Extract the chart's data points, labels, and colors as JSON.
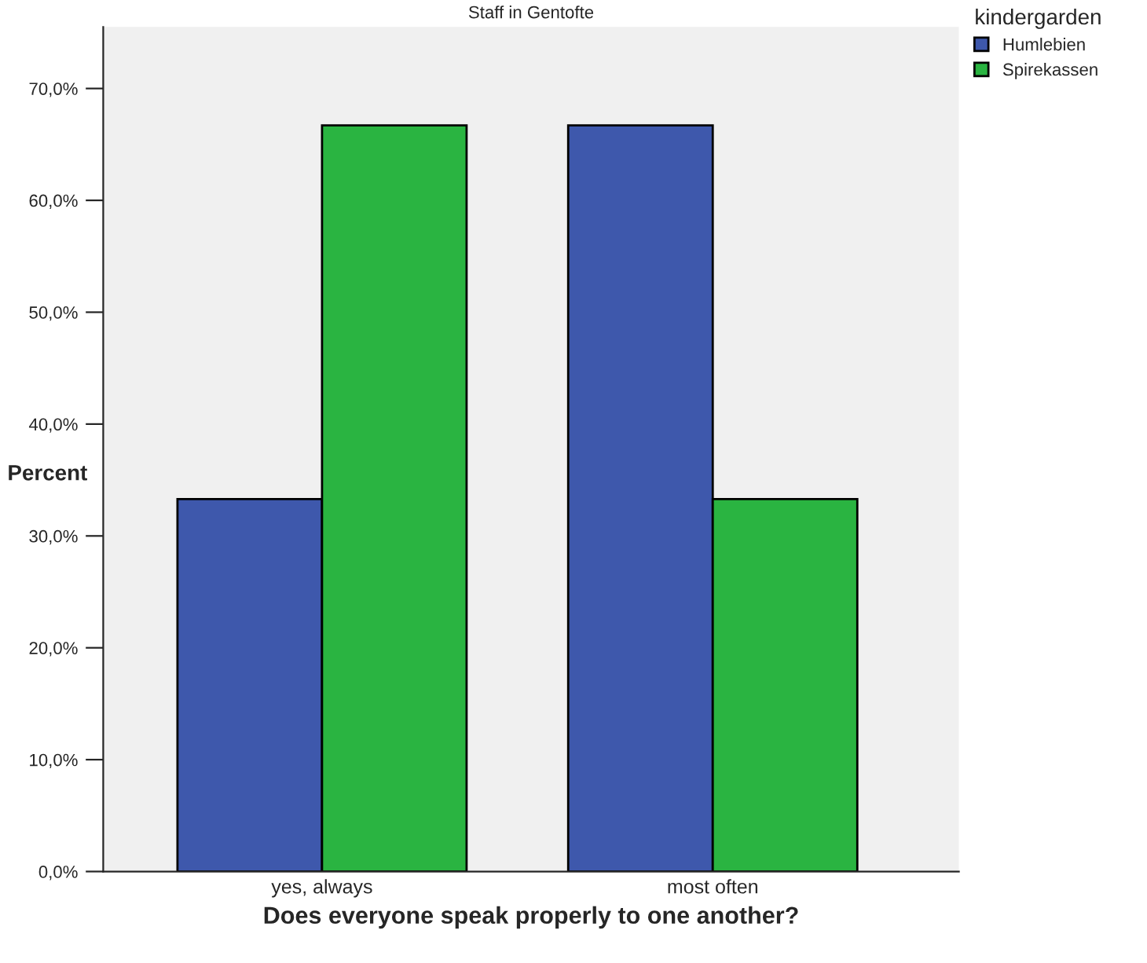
{
  "chart_data": {
    "type": "bar",
    "title": "Staff in Gentofte",
    "xlabel": "Does everyone speak properly to one another?",
    "ylabel": "Percent",
    "legend_title": "kindergarden",
    "categories": [
      "yes, always",
      "most often"
    ],
    "series": [
      {
        "name": "Humlebien",
        "color": "#3e58ac",
        "values": [
          33.3,
          66.7
        ]
      },
      {
        "name": "Spirekassen",
        "color": "#2ab441",
        "values": [
          66.7,
          33.3
        ]
      }
    ],
    "ylim": [
      0,
      75.5
    ],
    "yticks": [
      {
        "value": 0,
        "label": "0,0%"
      },
      {
        "value": 10,
        "label": "10,0%"
      },
      {
        "value": 20,
        "label": "20,0%"
      },
      {
        "value": 30,
        "label": "30,0%"
      },
      {
        "value": 40,
        "label": "40,0%"
      },
      {
        "value": 50,
        "label": "50,0%"
      },
      {
        "value": 60,
        "label": "60,0%"
      },
      {
        "value": 70,
        "label": "70,0%"
      }
    ],
    "grid": false,
    "legend": "top right"
  }
}
